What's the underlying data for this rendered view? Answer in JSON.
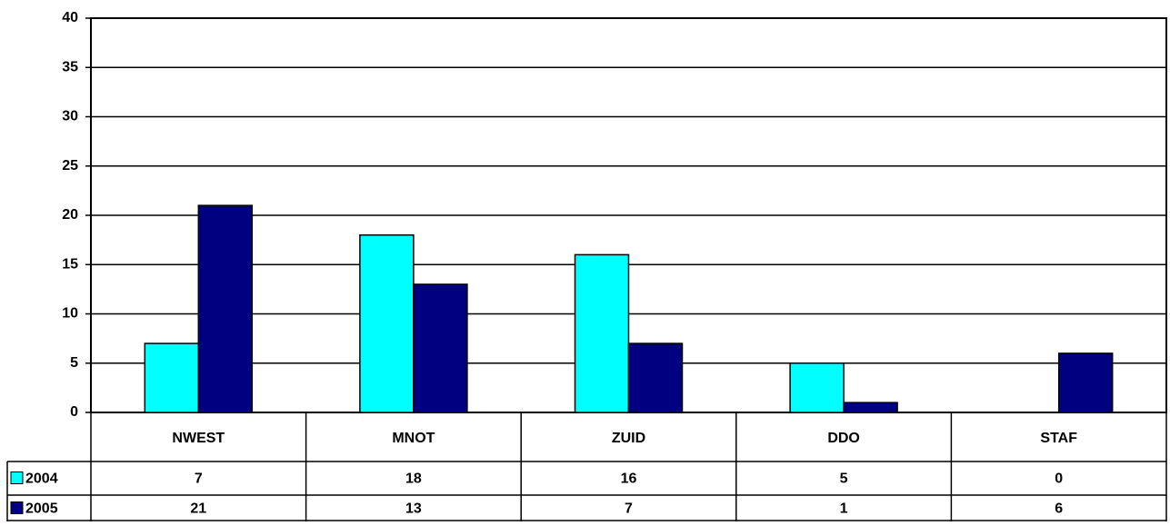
{
  "chart_data": {
    "type": "bar",
    "categories": [
      "NWEST",
      "MNOT",
      "ZUID",
      "DDO",
      "STAF"
    ],
    "series": [
      {
        "name": "2004",
        "color": "#00ffff",
        "values": [
          7,
          18,
          16,
          5,
          0
        ]
      },
      {
        "name": "2005",
        "color": "#000080",
        "values": [
          21,
          13,
          7,
          1,
          6
        ]
      }
    ],
    "ylim": [
      0,
      40
    ],
    "yticks": [
      0,
      5,
      10,
      15,
      20,
      25,
      30,
      35,
      40
    ],
    "grid": true,
    "legend": "table"
  }
}
